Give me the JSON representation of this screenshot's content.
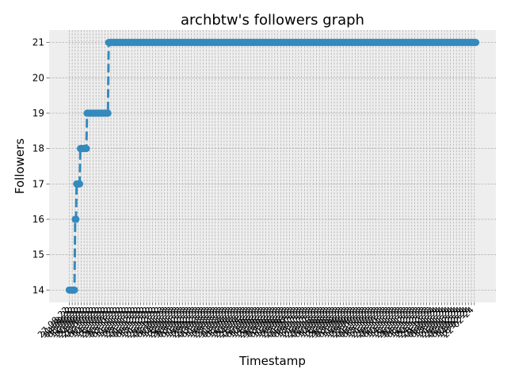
{
  "chart_data": {
    "type": "line",
    "title": "archbtw's followers graph",
    "xlabel": "Timestamp",
    "ylabel": "Followers",
    "ylim": [
      13.65,
      21.35
    ],
    "yticks": [
      14,
      15,
      16,
      17,
      18,
      19,
      20,
      21
    ],
    "grid": true,
    "legend": "none",
    "line_color": "#348ABD",
    "background_color": "#EEEEEE",
    "line_style": "dashed",
    "marker": "circle",
    "categories": [
      "27-08-22",
      "28-08-22",
      "29-08-22",
      "30-08-22",
      "31-08-22",
      "01-09-22",
      "02-09-22",
      "03-09-22",
      "04-09-22",
      "05-09-22",
      "06-09-22",
      "07-09-22",
      "08-09-22",
      "09-09-22",
      "10-09-22",
      "11-09-22",
      "12-09-22",
      "13-09-22",
      "14-09-22",
      "15-09-22",
      "16-09-22",
      "17-09-22",
      "18-09-22",
      "19-09-22",
      "20-09-22",
      "21-09-22",
      "22-09-22",
      "23-09-22",
      "24-09-22",
      "25-09-22",
      "26-09-22",
      "27-09-22",
      "28-09-22",
      "29-09-22",
      "30-09-22",
      "01-10-22",
      "02-10-22",
      "03-10-22",
      "04-10-22",
      "05-10-22",
      "06-10-22",
      "07-10-22",
      "08-10-22",
      "09-10-22",
      "10-10-22",
      "11-10-22",
      "12-10-22",
      "13-10-22",
      "14-10-22",
      "15-10-22",
      "16-10-22",
      "17-10-22",
      "18-10-22",
      "19-10-22",
      "20-10-22",
      "21-10-22",
      "22-10-22",
      "23-10-22",
      "24-10-22",
      "25-10-22",
      "26-10-22",
      "27-10-22",
      "28-10-22",
      "29-10-22",
      "30-10-22",
      "31-10-22",
      "01-11-22",
      "02-11-22",
      "03-11-22",
      "04-11-22",
      "05-11-22",
      "06-11-22",
      "07-11-22",
      "08-11-22",
      "09-11-22",
      "10-11-22",
      "11-11-22",
      "12-11-22",
      "13-11-22",
      "14-11-22",
      "15-11-22",
      "16-11-22",
      "17-11-22",
      "18-11-22",
      "19-11-22",
      "20-11-22",
      "21-11-22",
      "22-11-22",
      "23-11-22",
      "24-11-22",
      "25-11-22",
      "26-11-22",
      "27-11-22",
      "28-11-22",
      "29-11-22",
      "30-11-22",
      "01-12-22",
      "02-12-22",
      "03-12-22",
      "04-12-22",
      "05-12-22",
      "06-12-22",
      "07-12-22",
      "08-12-22",
      "09-12-22",
      "10-12-22",
      "11-12-22",
      "12-12-22",
      "13-12-22",
      "14-12-22",
      "15-12-22",
      "16-12-22",
      "17-12-22",
      "18-12-22",
      "19-12-22",
      "20-12-22",
      "21-12-22",
      "22-12-22",
      "23-12-22",
      "24-12-22",
      "25-12-22",
      "26-12-22",
      "27-12-22",
      "28-12-22",
      "29-12-22",
      "30-12-22",
      "31-12-22",
      "01-01-23",
      "02-01-23",
      "03-01-23",
      "04-01-23",
      "05-01-23",
      "06-01-23",
      "07-01-23",
      "08-01-23",
      "09-01-23",
      "10-01-23",
      "11-01-23",
      "12-01-23",
      "13-01-23",
      "14-01-23",
      "15-01-23",
      "16-01-23",
      "17-01-23",
      "18-01-23",
      "19-01-23",
      "20-01-23",
      "21-01-23",
      "22-01-23",
      "23-01-23",
      "24-01-23",
      "25-01-23",
      "26-01-23",
      "27-01-23",
      "28-01-23",
      "29-01-23",
      "30-01-23",
      "31-01-23",
      "01-02-23",
      "02-02-23",
      "03-02-23",
      "04-02-23",
      "05-02-23",
      "06-02-23",
      "07-02-23",
      "08-02-23",
      "09-02-23",
      "10-02-23",
      "11-02-23",
      "12-02-23",
      "13-02-23",
      "14-02-23",
      "15-02-23",
      "16-02-23",
      "17-02-23",
      "18-02-23",
      "19-02-23",
      "20-02-23",
      "21-02-23",
      "22-02-23",
      "23-02-23",
      "24-02-23",
      "25-02-23",
      "26-02-23",
      "27-02-23",
      "28-02-23",
      "01-03-23",
      "02-03-23",
      "03-03-23",
      "04-03-23",
      "05-03-23",
      "06-03-23",
      "07-03-23",
      "08-03-23",
      "09-03-23",
      "10-03-23",
      "11-03-23",
      "12-03-23",
      "13-03-23",
      "14-03-23",
      "15-03-23",
      "16-03-23",
      "17-03-23",
      "18-03-23",
      "19-03-23",
      "20-03-23",
      "21-03-23",
      "22-03-23",
      "23-03-23",
      "24-03-23",
      "25-03-23",
      "26-03-23",
      "27-03-23",
      "28-03-23",
      "29-03-23",
      "30-03-23",
      "31-03-23",
      "01-04-23",
      "02-04-23",
      "03-04-23",
      "04-04-23",
      "05-04-23",
      "06-04-23",
      "07-04-23",
      "08-04-23",
      "09-04-23",
      "10-04-23",
      "11-04-23",
      "12-04-23",
      "13-04-23",
      "14-04-23",
      "15-04-23",
      "16-04-23",
      "17-04-23",
      "18-04-23",
      "19-04-23",
      "20-04-23",
      "21-04-23",
      "22-04-23",
      "23-04-23",
      "24-04-23",
      "25-04-23",
      "26-04-23",
      "27-04-23",
      "28-04-23",
      "29-04-23",
      "30-04-23",
      "01-05-23",
      "02-05-23",
      "03-05-23",
      "04-05-23",
      "05-05-23",
      "06-05-23",
      "07-05-23",
      "08-05-23",
      "09-05-23",
      "10-05-23",
      "11-05-23",
      "12-05-23",
      "13-05-23",
      "14-05-23",
      "15-05-23",
      "16-05-23",
      "17-05-23",
      "18-05-23",
      "19-05-23",
      "20-05-23",
      "21-05-23",
      "22-05-23",
      "23-05-23",
      "24-05-23",
      "25-05-23",
      "26-05-23",
      "27-05-23",
      "28-05-23",
      "29-05-23",
      "30-05-23",
      "31-05-23",
      "01-06-23",
      "02-06-23",
      "03-06-23",
      "04-06-23",
      "05-06-23",
      "06-06-23",
      "07-06-23",
      "08-06-23",
      "09-06-23",
      "10-06-23",
      "11-06-23",
      "12-06-23",
      "13-06-23",
      "14-06-23",
      "15-06-23",
      "16-06-23",
      "17-06-23",
      "18-06-23",
      "19-06-23",
      "20-06-23",
      "21-06-23",
      "22-06-23",
      "23-06-23",
      "24-06-23",
      "25-06-23",
      "26-06-23",
      "27-06-23",
      "28-06-23",
      "29-06-23",
      "30-06-23",
      "01-07-23",
      "02-07-23",
      "03-07-23",
      "04-07-23",
      "05-07-23",
      "06-07-23",
      "07-07-23",
      "08-07-23",
      "09-07-23",
      "10-07-23",
      "11-07-23",
      "12-07-23",
      "13-07-23",
      "14-07-23",
      "15-07-23",
      "16-07-23",
      "17-07-23",
      "18-07-23",
      "19-07-23",
      "20-07-23",
      "21-07-23",
      "22-07-23",
      "23-07-23",
      "24-07-23",
      "25-07-23",
      "26-07-23",
      "27-07-23",
      "28-07-23",
      "29-07-23",
      "30-07-23",
      "31-07-23",
      "01-08-23",
      "02-08-23",
      "03-08-23",
      "04-08-23",
      "05-08-23",
      "06-08-23",
      "07-08-23",
      "08-08-23",
      "09-08-23",
      "10-08-23",
      "11-08-23",
      "12-08-23",
      "13-08-23",
      "14-08-23",
      "15-08-23",
      "16-08-23",
      "17-08-23",
      "18-08-23",
      "19-08-23",
      "20-08-23",
      "21-08-23",
      "22-08-23",
      "23-08-23",
      "24-08-23",
      "25-08-23",
      "26-08-23",
      "27-08-23",
      "28-08-23",
      "29-08-23",
      "30-08-23",
      "31-08-23",
      "01-09-23",
      "02-09-23",
      "03-09-23",
      "04-09-23",
      "05-09-23",
      "06-09-23",
      "07-09-23",
      "08-09-23",
      "09-09-23",
      "10-09-23",
      "11-09-23",
      "12-09-23",
      "13-09-23",
      "14-09-23",
      "15-09-23",
      "16-09-23",
      "17-09-23",
      "18-09-23",
      "19-09-23",
      "20-09-23",
      "21-09-23",
      "22-09-23",
      "23-09-23",
      "24-09-23",
      "25-09-23",
      "26-09-23",
      "27-09-23",
      "28-09-23",
      "29-09-23",
      "30-09-23",
      "01-10-23",
      "02-10-23",
      "03-10-23",
      "04-10-23",
      "05-10-23",
      "06-10-23",
      "07-10-23",
      "08-10-23",
      "09-10-23",
      "10-10-23",
      "11-10-23",
      "12-10-23",
      "13-10-23",
      "14-10-23",
      "15-10-23",
      "16-10-23",
      "17-10-23",
      "18-10-23",
      "19-10-23",
      "20-10-23",
      "21-10-23",
      "22-10-23",
      "23-10-23",
      "24-10-23",
      "25-10-23",
      "26-10-23",
      "27-10-23",
      "28-10-23",
      "29-10-23",
      "30-10-23",
      "31-10-23",
      "01-11-23",
      "02-11-23",
      "03-11-23",
      "04-11-23",
      "05-11-23",
      "06-11-23",
      "07-11-23",
      "08-11-23",
      "09-11-23",
      "10-11-23",
      "11-11-23",
      "12-11-23",
      "13-11-23",
      "14-11-23",
      "15-11-23",
      "16-11-23",
      "17-11-23",
      "18-11-23",
      "19-11-23",
      "20-11-23",
      "21-11-23",
      "22-11-23",
      "23-11-23",
      "24-11-23",
      "25-11-23",
      "26-11-23",
      "27-11-23",
      "28-11-23",
      "29-11-23",
      "30-11-23",
      "01-12-23",
      "02-12-23",
      "03-12-23",
      "04-12-23",
      "05-12-23",
      "06-12-23",
      "07-12-23",
      "08-12-23",
      "09-12-23",
      "10-12-23",
      "11-12-23",
      "12-12-23",
      "13-12-23",
      "14-12-23",
      "15-12-23",
      "16-12-23",
      "17-12-23",
      "18-12-23",
      "19-12-23",
      "20-12-23",
      "21-12-23",
      "22-12-23",
      "23-12-23",
      "24-12-23",
      "25-12-23",
      "26-12-23",
      "27-12-23",
      "28-12-23",
      "29-12-23",
      "30-12-23",
      "31-12-23",
      "01-01-24",
      "02-01-24",
      "03-01-24",
      "04-01-24",
      "05-01-24",
      "06-01-24",
      "07-01-24",
      "08-01-24",
      "09-01-24",
      "10-01-24",
      "11-01-24",
      "12-01-24",
      "13-01-24",
      "14-01-24",
      "15-01-24",
      "16-01-24",
      "17-01-24",
      "18-01-24",
      "19-01-24",
      "20-01-24",
      "21-01-24",
      "22-01-24",
      "23-01-24",
      "24-01-24",
      "25-01-24",
      "26-01-24",
      "27-01-24",
      "28-01-24",
      "29-01-24",
      "30-01-24",
      "31-01-24",
      "01-02-24",
      "02-02-24",
      "03-02-24",
      "04-02-24",
      "05-02-24",
      "06-02-24",
      "07-02-24",
      "08-02-24",
      "09-02-24",
      "10-02-24",
      "11-02-24",
      "12-02-24",
      "13-02-24",
      "14-02-24",
      "15-02-24",
      "16-02-24",
      "17-02-24",
      "18-02-24",
      "19-02-24",
      "20-02-24",
      "21-02-24",
      "22-02-24",
      "23-02-24",
      "24-02-24"
    ],
    "steps": [
      {
        "until": "03-09-22",
        "value": 14
      },
      {
        "until": "05-09-22",
        "value": 16
      },
      {
        "until": "10-09-22",
        "value": 17
      },
      {
        "until": "19-09-22",
        "value": 18
      },
      {
        "until": "18-10-22",
        "value": 19
      },
      {
        "until": "24-02-24",
        "value": 21
      }
    ]
  }
}
